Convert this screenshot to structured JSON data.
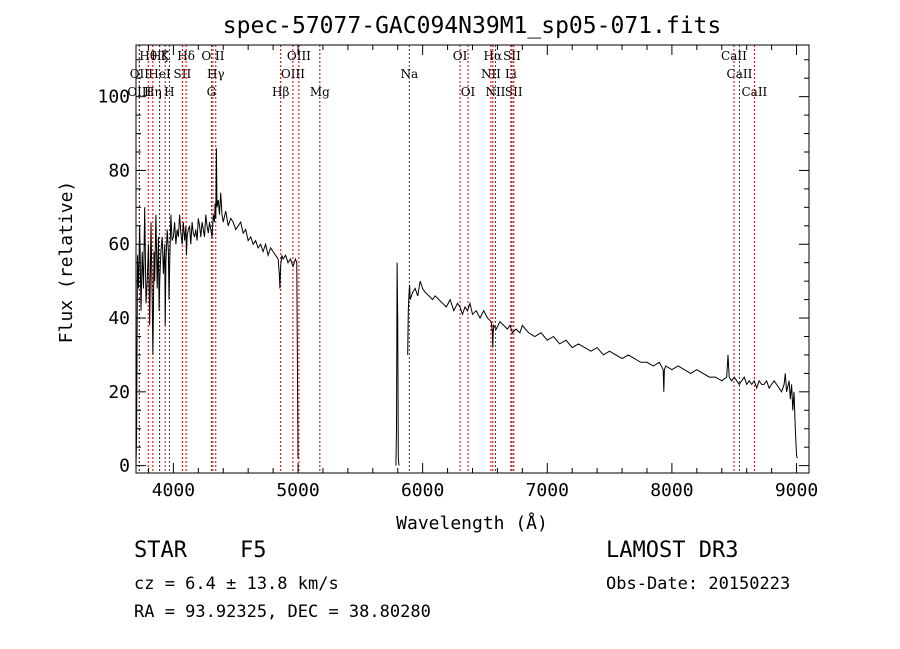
{
  "chart_data": {
    "type": "line",
    "title": "spec-57077-GAC094N39M1_sp05-071.fits",
    "xlabel": "Wavelength (Å)",
    "ylabel": "Flux (relative)",
    "xlim": [
      3700,
      9100
    ],
    "ylim": [
      -2,
      114
    ],
    "x_ticks": [
      4000,
      5000,
      6000,
      7000,
      8000,
      9000
    ],
    "x_tick_labels": [
      "4000",
      "5000",
      "6000",
      "7000",
      "8000",
      "9000"
    ],
    "y_ticks": [
      0,
      20,
      40,
      60,
      80,
      100
    ],
    "y_tick_labels": [
      "0",
      "20",
      "40",
      "60",
      "80",
      "100"
    ],
    "grid": false,
    "series": [
      {
        "name": "spectrum",
        "segments": [
          {
            "x": [
              3700,
              3705,
              3712,
              3720,
              3730,
              3740,
              3750,
              3760,
              3770,
              3780,
              3790,
              3800,
              3810,
              3820,
              3830,
              3836,
              3845,
              3850,
              3860,
              3870,
              3880,
              3885,
              3890,
              3900,
              3910,
              3920,
              3930,
              3934,
              3940,
              3950,
              3960,
              3965,
              3970,
              3980,
              3990,
              4000,
              4010,
              4020,
              4030,
              4040,
              4050,
              4060,
              4070,
              4080,
              4090,
              4100,
              4105,
              4110,
              4120,
              4130,
              4140,
              4150,
              4160,
              4170,
              4180,
              4190,
              4200,
              4210,
              4220,
              4230,
              4240,
              4250,
              4260,
              4270,
              4280,
              4290,
              4300,
              4310,
              4320,
              4330,
              4335,
              4340,
              4345,
              4350,
              4360,
              4370,
              4380,
              4390,
              4400,
              4420,
              4440,
              4460,
              4480,
              4500,
              4520,
              4540,
              4560,
              4580,
              4600,
              4620,
              4640,
              4660,
              4680,
              4700,
              4720,
              4740,
              4760,
              4780,
              4800,
              4820,
              4840,
              4850,
              4855,
              4860,
              4870,
              4880,
              4900,
              4920,
              4940,
              4960,
              4980,
              4990,
              5000,
              5005
            ],
            "y": [
              0,
              8,
              57,
              48,
              65,
              42,
              58,
              48,
              70,
              44,
              50,
              60,
              38,
              66,
              45,
              30,
              58,
              50,
              68,
              48,
              62,
              42,
              50,
              58,
              62,
              52,
              60,
              38,
              55,
              64,
              58,
              45,
              55,
              68,
              61,
              62,
              66,
              60,
              64,
              62,
              68,
              63,
              60,
              66,
              61,
              65,
              57,
              62,
              64,
              65,
              60,
              66,
              63,
              62,
              64,
              61,
              67,
              65,
              62,
              66,
              64,
              62,
              68,
              65,
              63,
              66,
              64,
              62,
              68,
              66,
              71,
              67,
              86,
              70,
              72,
              68,
              74,
              68,
              66,
              69,
              65,
              67,
              66,
              64,
              65,
              66,
              63,
              64,
              61,
              62,
              60,
              61,
              59,
              60,
              58,
              60,
              57,
              59,
              58,
              57,
              56,
              52,
              48,
              54,
              57,
              56,
              57,
              55,
              56,
              54,
              56,
              55,
              2,
              2
            ]
          },
          {
            "x": [
              5785,
              5790,
              5795,
              5800,
              5805,
              5810
            ],
            "y": [
              0,
              10,
              55,
              40,
              2,
              0
            ]
          },
          {
            "x": [
              5880,
              5885,
              5890,
              5895,
              5900,
              5920,
              5940,
              5960,
              5980,
              6000,
              6020,
              6050,
              6080,
              6100,
              6130,
              6160,
              6190,
              6220,
              6250,
              6280,
              6300,
              6320,
              6340,
              6360,
              6380,
              6400,
              6430,
              6460,
              6490,
              6520,
              6550,
              6560,
              6563,
              6566,
              6570,
              6590,
              6620,
              6650,
              6680,
              6700,
              6720,
              6750,
              6780,
              6800,
              6850,
              6900,
              6950,
              7000,
              7050,
              7100,
              7150,
              7200,
              7250,
              7300,
              7350,
              7400,
              7450,
              7500,
              7550,
              7600,
              7650,
              7700,
              7750,
              7800,
              7850,
              7900,
              7930,
              7935,
              7940,
              7950,
              8000,
              8050,
              8100,
              8150,
              8200,
              8250,
              8300,
              8350,
              8400,
              8440,
              8450,
              8460,
              8480,
              8500,
              8520,
              8540,
              8560,
              8580,
              8600,
              8620,
              8640,
              8660,
              8680,
              8700,
              8720,
              8740,
              8760,
              8780,
              8800,
              8820,
              8840,
              8860,
              8880,
              8900,
              8910,
              8920,
              8940,
              8950,
              8960,
              8970,
              8980,
              8990,
              9000,
              9005
            ],
            "y": [
              30,
              42,
              46,
              49,
              45,
              47,
              48,
              46,
              50,
              48,
              47,
              46,
              45,
              46,
              45,
              44,
              43,
              45,
              42,
              44,
              43,
              41,
              43,
              42,
              44,
              41,
              42,
              40,
              42,
              40,
              39,
              36,
              32,
              36,
              38,
              37,
              39,
              38,
              37,
              38,
              36,
              37,
              36,
              38,
              36,
              35,
              36,
              34,
              35,
              33,
              34,
              32,
              33,
              32,
              31,
              32,
              30,
              31,
              30,
              29,
              30,
              29,
              28,
              28,
              27,
              28,
              26,
              20,
              26,
              27,
              26,
              27,
              26,
              25,
              26,
              25,
              24,
              24,
              23,
              24,
              30,
              24,
              23,
              24,
              23,
              22,
              23,
              24,
              22,
              23,
              22,
              23,
              21,
              23,
              22,
              22,
              23,
              21,
              22,
              23,
              22,
              21,
              20,
              22,
              25,
              20,
              23,
              18,
              22,
              15,
              20,
              10,
              3,
              2
            ]
          }
        ]
      }
    ],
    "lines": [
      {
        "label": "Hθ",
        "x": 3798,
        "row": 0
      },
      {
        "label": "OII",
        "x": 3727,
        "row": 1
      },
      {
        "label": "OIII",
        "x": 3727,
        "row": 2
      },
      {
        "label": "Hη",
        "x": 3835,
        "row": 2
      },
      {
        "label": "Hζ",
        "x": 3889,
        "row": 0
      },
      {
        "label": "HeI",
        "x": 3889,
        "row": 1
      },
      {
        "label": "K",
        "x": 3934,
        "row": 0
      },
      {
        "label": "SII",
        "x": 4072,
        "row": 1
      },
      {
        "label": "H",
        "x": 3968,
        "row": 2
      },
      {
        "label": "Hδ",
        "x": 4102,
        "row": 0
      },
      {
        "label": "O II",
        "x": 4317,
        "row": 0
      },
      {
        "label": "Hγ",
        "x": 4340,
        "row": 1
      },
      {
        "label": "G",
        "x": 4305,
        "row": 2
      },
      {
        "label": "Hβ",
        "x": 4861,
        "row": 2
      },
      {
        "label": "OIII",
        "x": 5007,
        "row": 0
      },
      {
        "label": "OIII",
        "x": 4959,
        "row": 1
      },
      {
        "label": "Mg",
        "x": 5175,
        "row": 2
      },
      {
        "label": "Na",
        "x": 5893,
        "row": 1
      },
      {
        "label": "OI",
        "x": 6300,
        "row": 0
      },
      {
        "label": "OI",
        "x": 6364,
        "row": 2
      },
      {
        "label": "Hα",
        "x": 6563,
        "row": 0
      },
      {
        "label": "NII",
        "x": 6548,
        "row": 1
      },
      {
        "label": "NII",
        "x": 6584,
        "row": 2
      },
      {
        "label": "SII",
        "x": 6717,
        "row": 0
      },
      {
        "label": "Li",
        "x": 6708,
        "row": 1
      },
      {
        "label": "SII",
        "x": 6731,
        "row": 2
      },
      {
        "label": "CaII",
        "x": 8498,
        "row": 0
      },
      {
        "label": "CaII",
        "x": 8542,
        "row": 1
      },
      {
        "label": "CaII",
        "x": 8662,
        "row": 2
      }
    ]
  },
  "footer": {
    "object_class": "STAR",
    "subclass": "F5",
    "survey": "LAMOST DR3",
    "redshift": "cz = 6.4 ± 13.8 km/s",
    "obs_date": "Obs-Date: 20150223",
    "coords": "RA =  93.92325, DEC =  38.80280"
  },
  "colors": {
    "spectrum": "#000000",
    "line_marker": "#c00000",
    "axis": "#000000"
  }
}
